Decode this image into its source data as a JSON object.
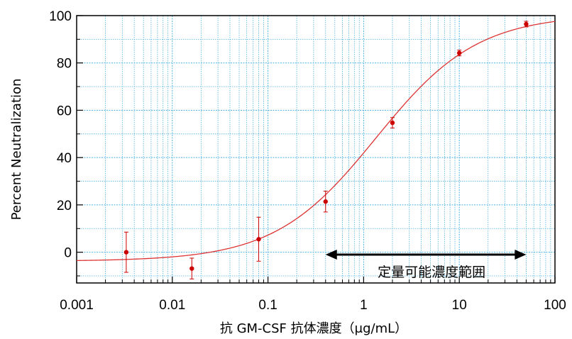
{
  "chart_data": {
    "type": "scatter",
    "ylabel": "Percent Neutralization",
    "xlabel": "抗 GM-CSF 抗体濃度（μg/mL）",
    "x_scale": "log",
    "xlim": [
      0.001,
      100
    ],
    "ylim": [
      -13,
      100
    ],
    "x_ticks": [
      0.001,
      0.01,
      0.1,
      1,
      10,
      100
    ],
    "x_tick_labels": [
      "0.001",
      "0.01",
      "0.1",
      "1",
      "10",
      "100"
    ],
    "y_ticks": [
      0,
      20,
      40,
      60,
      80,
      100
    ],
    "y_tick_labels": [
      "0",
      "20",
      "40",
      "60",
      "80",
      "100"
    ],
    "grid": true,
    "colors": {
      "data": "#cc0000",
      "curve": "#dd3333",
      "grid": "#4fb3e0",
      "axis": "#000000"
    },
    "points": [
      {
        "x": 0.0033,
        "y": 0.0,
        "err": 8.5
      },
      {
        "x": 0.016,
        "y": -6.9,
        "err": 4.4
      },
      {
        "x": 0.08,
        "y": 5.5,
        "err": 9.3
      },
      {
        "x": 0.4,
        "y": 21.4,
        "err": 4.4
      },
      {
        "x": 2.0,
        "y": 54.7,
        "err": 2.2
      },
      {
        "x": 10.0,
        "y": 84.2,
        "err": 1.2
      },
      {
        "x": 50.0,
        "y": 96.4,
        "err": 1.2
      }
    ],
    "fit_curve": {
      "model": "4PL",
      "bottom": -3.8,
      "top": 100.5,
      "ec50": 1.35,
      "hill": 0.82
    },
    "annotation": {
      "text": "定量可能濃度範囲",
      "range": [
        0.4,
        50
      ],
      "y": -1
    }
  }
}
